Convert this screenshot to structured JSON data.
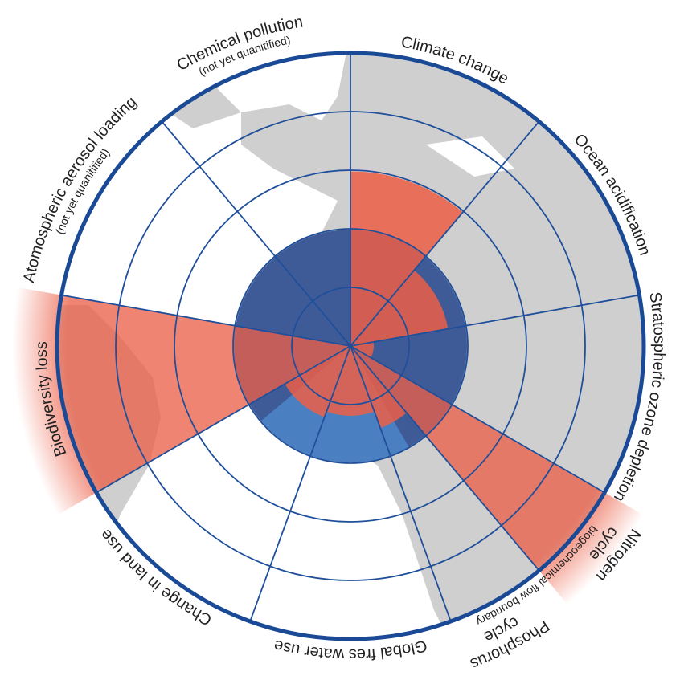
{
  "segments": [
    {
      "label": [
        "Climate change"
      ],
      "value": 1.5
    },
    {
      "label": [
        "Ocean acidification"
      ],
      "value": 0.85
    },
    {
      "label": [
        "Stratospheric ozone depletion"
      ],
      "value": 0.2
    },
    {
      "label": [
        "Nitrogen",
        "cycle"
      ],
      "value": 2.9
    },
    {
      "label": [
        "Phosphorus",
        "cycle"
      ],
      "value": 0.75
    },
    {
      "label": [
        "Global fres water use"
      ],
      "value": 0.6
    },
    {
      "label": [
        "Change in land use"
      ],
      "value": 0.65
    },
    {
      "label": [
        "Biodiversity loss"
      ],
      "value": 2.9
    },
    {
      "label": [
        "Atomospheric aerosol loading"
      ],
      "sublabel": "(not yet quanitified)",
      "value": null
    },
    {
      "label": [
        "Chemical pollution"
      ],
      "sublabel": "(not yet quanitified)",
      "value": null
    }
  ],
  "group_label": "biogeochemical flow boundary"
}
